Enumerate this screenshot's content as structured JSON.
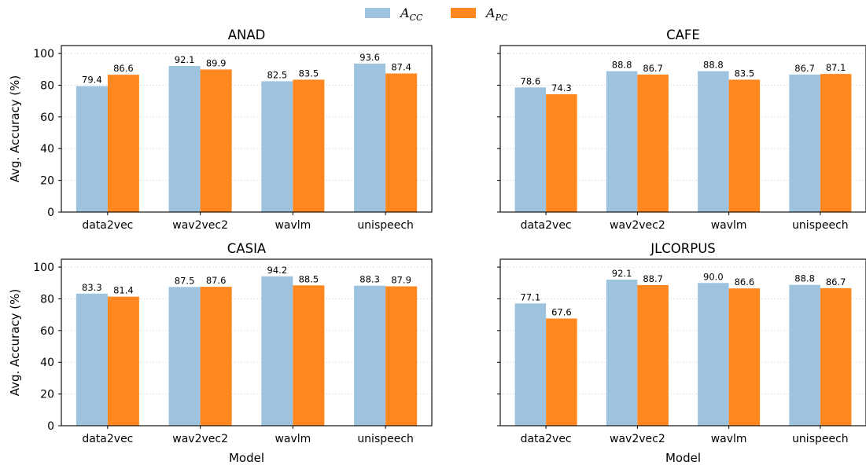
{
  "colors": {
    "acc": "#9dc3de",
    "apc": "#ff871f",
    "grid": "#d9d9d9"
  },
  "legend": [
    {
      "key": "acc",
      "main": "A",
      "sub": "CC"
    },
    {
      "key": "apc",
      "main": "A",
      "sub": "PC"
    }
  ],
  "chart_data": [
    {
      "type": "bar",
      "title": "ANAD",
      "categories": [
        "data2vec",
        "wav2vec2",
        "wavlm",
        "unispeech"
      ],
      "series": [
        {
          "name": "A_CC",
          "values": [
            79.4,
            92.1,
            82.5,
            93.6
          ]
        },
        {
          "name": "A_PC",
          "values": [
            86.6,
            89.9,
            83.5,
            87.4
          ]
        }
      ],
      "value_labels": [
        [
          "79.4",
          "92.1",
          "82.5",
          "93.6"
        ],
        [
          "86.6",
          "89.9",
          "83.5",
          "87.4"
        ]
      ],
      "xlabel": "",
      "ylabel": "Avg. Accuracy (%)",
      "ylim": [
        0,
        105
      ],
      "yticks": [
        "0",
        "20",
        "40",
        "60",
        "80",
        "100"
      ],
      "grid": "y-dotted"
    },
    {
      "type": "bar",
      "title": "CAFE",
      "categories": [
        "data2vec",
        "wav2vec2",
        "wavlm",
        "unispeech"
      ],
      "series": [
        {
          "name": "A_CC",
          "values": [
            78.6,
            88.8,
            88.8,
            86.7
          ]
        },
        {
          "name": "A_PC",
          "values": [
            74.3,
            86.7,
            83.5,
            87.1
          ]
        }
      ],
      "value_labels": [
        [
          "78.6",
          "88.8",
          "88.8",
          "86.7"
        ],
        [
          "74.3",
          "86.7",
          "83.5",
          "87.1"
        ]
      ],
      "xlabel": "",
      "ylabel": "",
      "ylim": [
        0,
        105
      ],
      "yticks": [],
      "grid": "y-dotted"
    },
    {
      "type": "bar",
      "title": "CASIA",
      "categories": [
        "data2vec",
        "wav2vec2",
        "wavlm",
        "unispeech"
      ],
      "series": [
        {
          "name": "A_CC",
          "values": [
            83.3,
            87.5,
            94.2,
            88.3
          ]
        },
        {
          "name": "A_PC",
          "values": [
            81.4,
            87.6,
            88.5,
            87.9
          ]
        }
      ],
      "value_labels": [
        [
          "83.3",
          "87.5",
          "94.2",
          "88.3"
        ],
        [
          "81.4",
          "87.6",
          "88.5",
          "87.9"
        ]
      ],
      "xlabel": "Model",
      "ylabel": "Avg. Accuracy (%)",
      "ylim": [
        0,
        105
      ],
      "yticks": [
        "0",
        "20",
        "40",
        "60",
        "80",
        "100"
      ],
      "grid": "y-dotted"
    },
    {
      "type": "bar",
      "title": "JLCORPUS",
      "categories": [
        "data2vec",
        "wav2vec2",
        "wavlm",
        "unispeech"
      ],
      "series": [
        {
          "name": "A_CC",
          "values": [
            77.1,
            92.1,
            90.0,
            88.8
          ]
        },
        {
          "name": "A_PC",
          "values": [
            67.6,
            88.7,
            86.6,
            86.7
          ]
        }
      ],
      "value_labels": [
        [
          "77.1",
          "92.1",
          "90.0",
          "88.8"
        ],
        [
          "67.6",
          "88.7",
          "86.6",
          "86.7"
        ]
      ],
      "xlabel": "Model",
      "ylabel": "",
      "ylim": [
        0,
        105
      ],
      "yticks": [],
      "grid": "y-dotted"
    }
  ]
}
